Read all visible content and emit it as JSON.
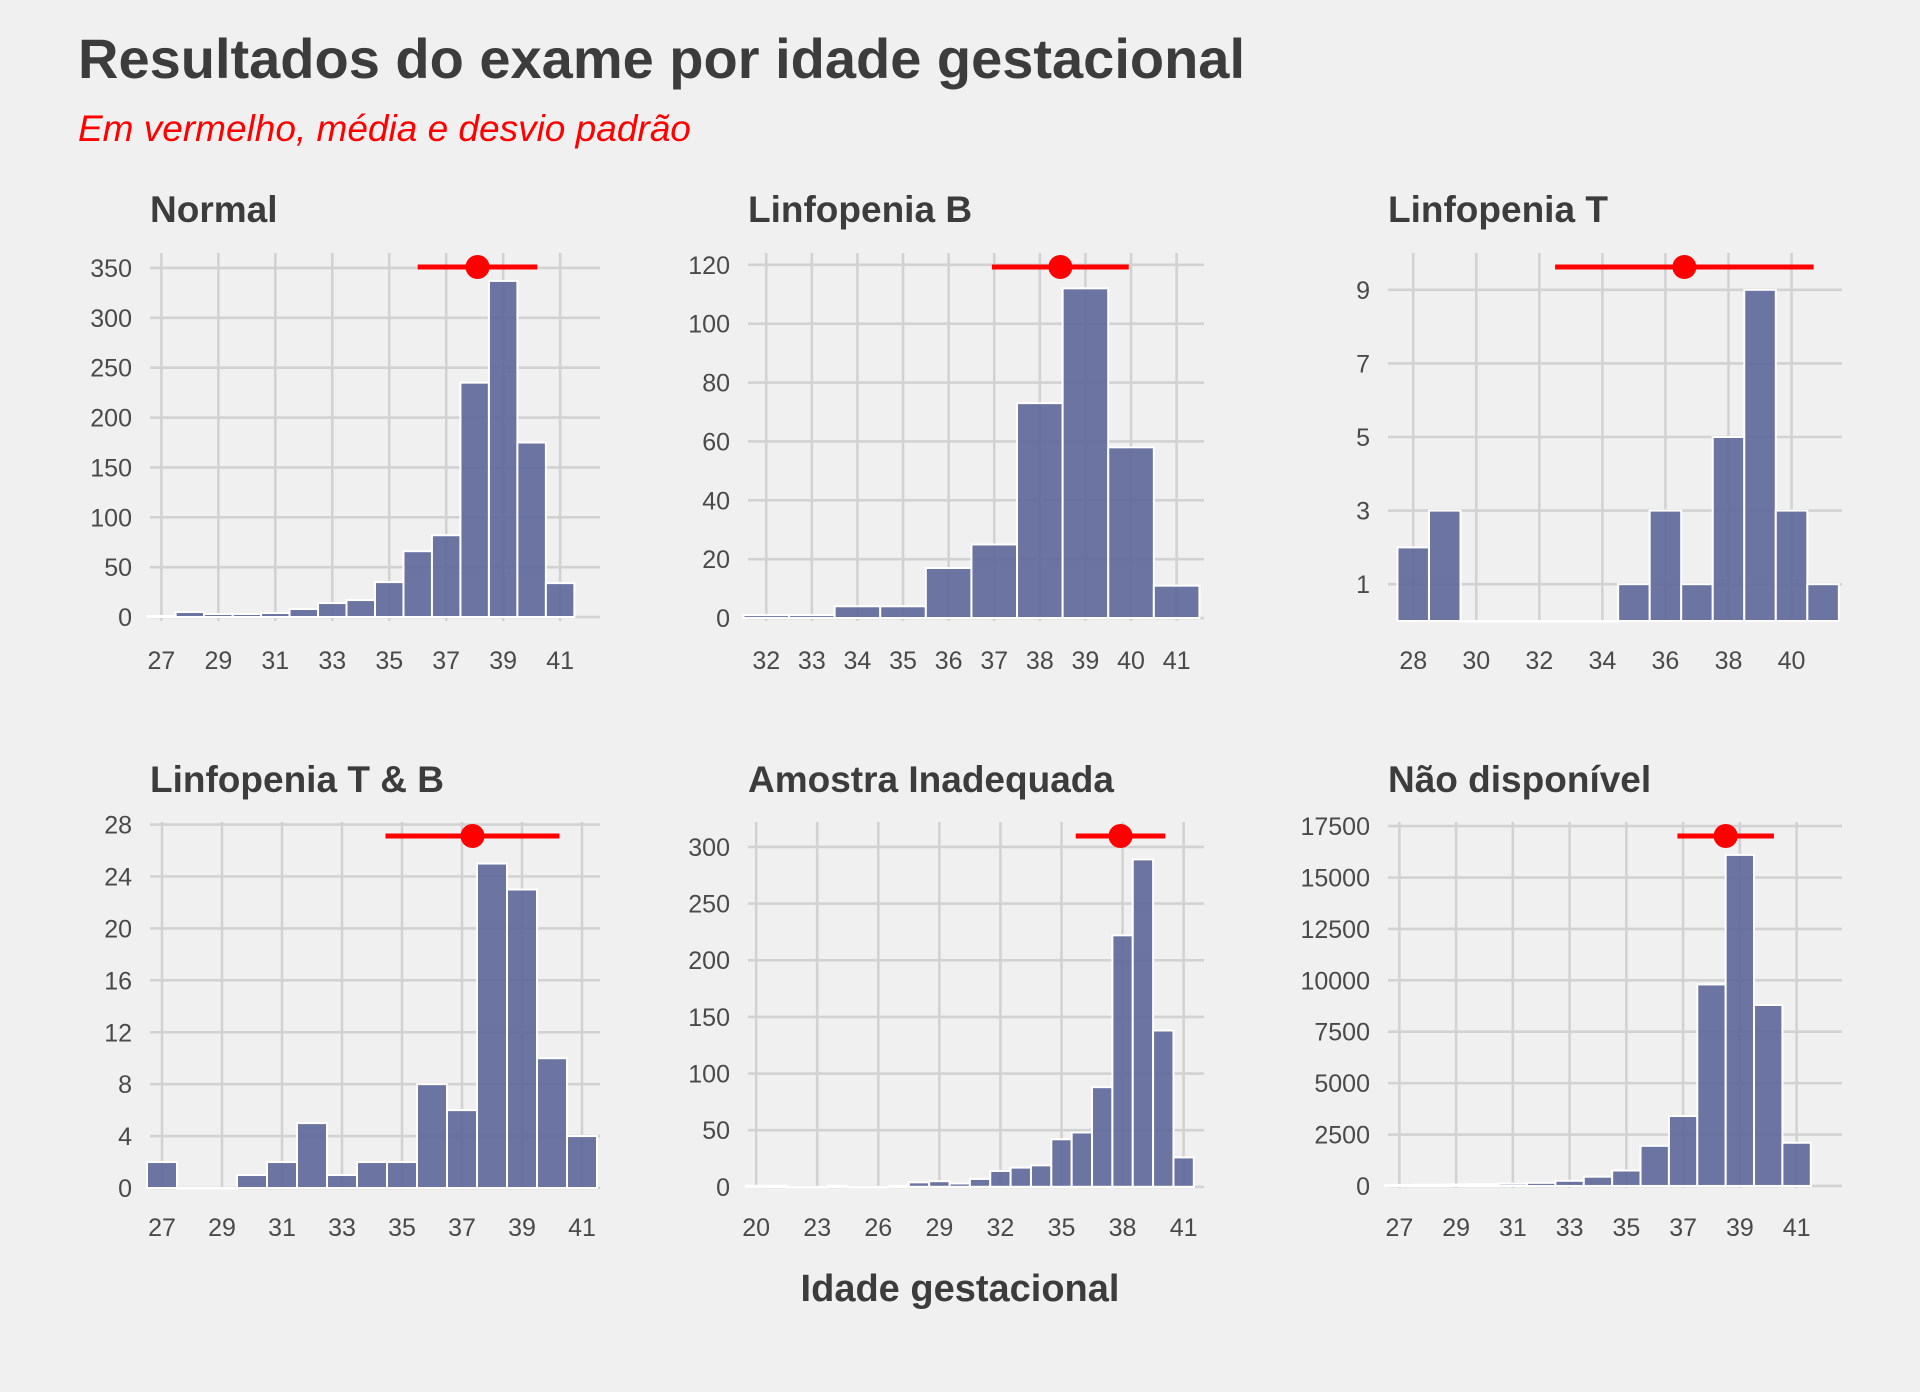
{
  "title": "Resultados do exame por idade gestacional",
  "subtitle": "Em vermelho, média e desvio padrão",
  "xlabel": "Idade gestacional",
  "colors": {
    "bar": "#5d6699",
    "accent": "#ff0000",
    "background": "#f0f0f0",
    "grid": "#d2d2d2",
    "text": "#3c3c3c"
  },
  "chart_data": [
    {
      "type": "bar",
      "title": "Normal",
      "x": [
        27,
        28,
        29,
        30,
        31,
        32,
        33,
        34,
        35,
        36,
        37,
        38,
        39,
        40,
        41
      ],
      "values": [
        1,
        5,
        3,
        3,
        4,
        8,
        14,
        17,
        35,
        66,
        82,
        235,
        337,
        175,
        34
      ],
      "xlim": [
        26.6,
        42.4
      ],
      "ylim": [
        -4,
        365
      ],
      "xticks": [
        27,
        29,
        31,
        33,
        35,
        37,
        39,
        41
      ],
      "yticks": [
        0,
        50,
        100,
        150,
        200,
        250,
        300,
        350
      ],
      "mean": 38.1,
      "sd": 2.1,
      "grid": true
    },
    {
      "type": "bar",
      "title": "Linfopenia B",
      "x": [
        32,
        33,
        34,
        35,
        36,
        37,
        38,
        39,
        40,
        41
      ],
      "values": [
        1,
        1,
        4,
        4,
        17,
        25,
        73,
        112,
        58,
        11
      ],
      "xlim": [
        31.6,
        41.6
      ],
      "ylim": [
        -1,
        124
      ],
      "xticks": [
        32,
        33,
        34,
        35,
        36,
        37,
        38,
        39,
        40,
        41
      ],
      "yticks": [
        0,
        20,
        40,
        60,
        80,
        100,
        120
      ],
      "mean": 38.45,
      "sd": 1.5,
      "grid": true
    },
    {
      "type": "bar",
      "title": "Linfopenia T",
      "x": [
        28,
        29,
        30,
        31,
        32,
        33,
        34,
        35,
        36,
        37,
        38,
        39,
        40,
        41
      ],
      "values": [
        2,
        3,
        0,
        0,
        0,
        0,
        0,
        1,
        3,
        1,
        5,
        9,
        3,
        1
      ],
      "xlim": [
        27.2,
        41.6
      ],
      "ylim": [
        0,
        10
      ],
      "xticks": [
        28,
        30,
        32,
        34,
        36,
        38,
        40
      ],
      "yticks": [
        1,
        3,
        5,
        7,
        9
      ],
      "mean": 36.6,
      "sd": 4.1,
      "grid": true
    },
    {
      "type": "bar",
      "title": "Linfopenia T & B",
      "x": [
        27,
        28,
        29,
        30,
        31,
        32,
        33,
        34,
        35,
        36,
        37,
        38,
        39,
        40,
        41
      ],
      "values": [
        2,
        0,
        0,
        1,
        2,
        5,
        1,
        2,
        2,
        8,
        6,
        25,
        23,
        10,
        4
      ],
      "xlim": [
        26.6,
        41.6
      ],
      "ylim": [
        0,
        28.2
      ],
      "xticks": [
        27,
        29,
        31,
        33,
        35,
        37,
        39,
        41
      ],
      "yticks": [
        0,
        4,
        8,
        12,
        16,
        20,
        24,
        28
      ],
      "mean": 37.35,
      "sd": 2.9,
      "grid": true
    },
    {
      "type": "bar",
      "title": "Amostra Inadequada",
      "x": [
        20,
        21,
        22,
        23,
        24,
        25,
        26,
        27,
        28,
        29,
        30,
        31,
        32,
        33,
        34,
        35,
        36,
        37,
        38,
        39,
        40,
        41
      ],
      "values": [
        1,
        1,
        0,
        0,
        1,
        0,
        0,
        1,
        4,
        5,
        3,
        7,
        14,
        17,
        19,
        42,
        48,
        88,
        222,
        289,
        138,
        26
      ],
      "xlim": [
        19.6,
        42.0
      ],
      "ylim": [
        -1,
        322
      ],
      "xticks": [
        20,
        23,
        26,
        29,
        32,
        35,
        38,
        41
      ],
      "yticks": [
        0,
        50,
        100,
        150,
        200,
        250,
        300
      ],
      "mean": 37.9,
      "sd": 2.2,
      "grid": true
    },
    {
      "type": "bar",
      "title": "Não disponível",
      "x": [
        27,
        28,
        29,
        30,
        31,
        32,
        33,
        34,
        35,
        36,
        37,
        38,
        39,
        40,
        41
      ],
      "values": [
        50,
        60,
        70,
        90,
        110,
        150,
        250,
        450,
        750,
        1950,
        3400,
        9800,
        16100,
        8800,
        2100
      ],
      "xlim": [
        26.6,
        42.6
      ],
      "ylim": [
        -100,
        17700
      ],
      "xticks": [
        27,
        29,
        31,
        33,
        35,
        37,
        39,
        41
      ],
      "yticks": [
        0,
        2500,
        5000,
        7500,
        10000,
        12500,
        15000,
        17500
      ],
      "mean": 38.5,
      "sd": 1.7,
      "grid": true
    }
  ]
}
